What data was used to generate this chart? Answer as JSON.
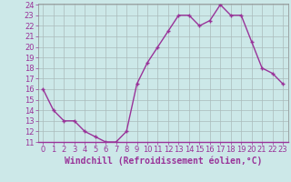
{
  "hours": [
    0,
    1,
    2,
    3,
    4,
    5,
    6,
    7,
    8,
    9,
    10,
    11,
    12,
    13,
    14,
    15,
    16,
    17,
    18,
    19,
    20,
    21,
    22,
    23
  ],
  "values": [
    16,
    14,
    13,
    13,
    12,
    11.5,
    11,
    11,
    12,
    16.5,
    18.5,
    20,
    21.5,
    23,
    23,
    22,
    22.5,
    24,
    23,
    23,
    20.5,
    18,
    17.5,
    16.5
  ],
  "line_color": "#993399",
  "marker": "+",
  "bg_color": "#cce8e8",
  "grid_color": "#aabbbb",
  "xlabel": "Windchill (Refroidissement éolien,°C)",
  "ylabel": "",
  "ylim": [
    11,
    24
  ],
  "xlim": [
    -0.5,
    23.5
  ],
  "yticks": [
    11,
    12,
    13,
    14,
    15,
    16,
    17,
    18,
    19,
    20,
    21,
    22,
    23,
    24
  ],
  "xticks": [
    0,
    1,
    2,
    3,
    4,
    5,
    6,
    7,
    8,
    9,
    10,
    11,
    12,
    13,
    14,
    15,
    16,
    17,
    18,
    19,
    20,
    21,
    22,
    23
  ],
  "axis_label_color": "#993399",
  "tick_label_color": "#993399",
  "xlabel_fontsize": 7.0,
  "tick_fontsize": 6.0,
  "line_width": 1.0,
  "marker_size": 3.5,
  "marker_edge_width": 1.0
}
